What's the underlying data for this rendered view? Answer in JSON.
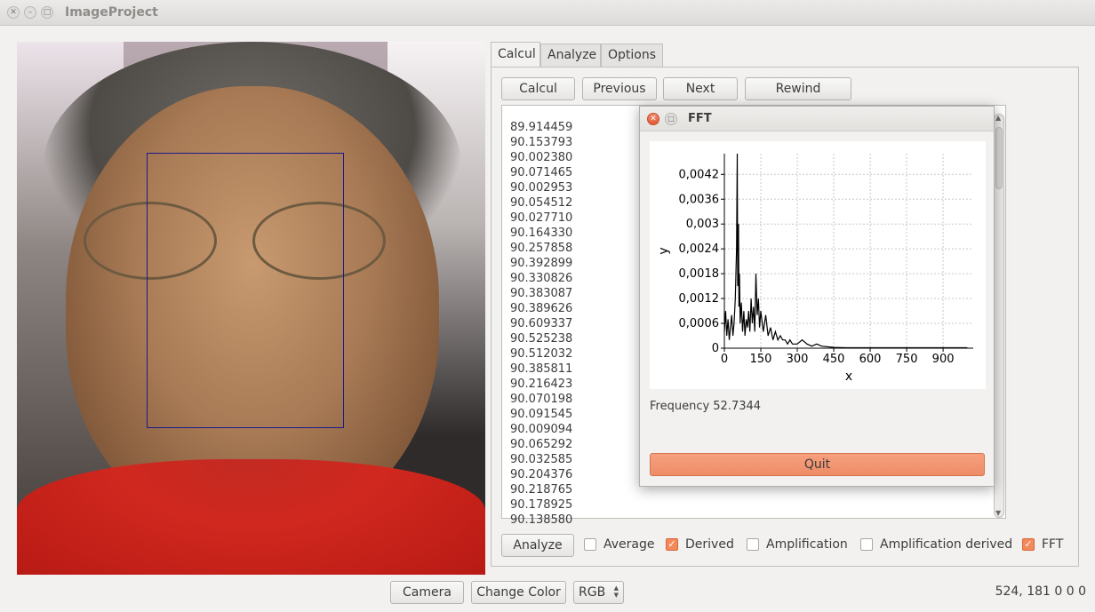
{
  "window": {
    "title": "ImageProject"
  },
  "tabs": [
    {
      "label": "Calcul",
      "active": true
    },
    {
      "label": "Analyze",
      "active": false
    },
    {
      "label": "Options",
      "active": false
    }
  ],
  "toolbar": {
    "calcul": "Calcul",
    "previous": "Previous",
    "next": "Next",
    "rewind": "Rewind"
  },
  "values": [
    "89.914459",
    "90.153793",
    "90.002380",
    "90.071465",
    "90.002953",
    "90.054512",
    "90.027710",
    "90.164330",
    "90.257858",
    "90.392899",
    "90.330826",
    "90.383087",
    "90.389626",
    "90.609337",
    "90.525238",
    "90.512032",
    "90.385811",
    "90.216423",
    "90.070198",
    "90.091545",
    "90.009094",
    "90.065292",
    "90.032585",
    "90.204376",
    "90.218765",
    "90.178925",
    "90.138580"
  ],
  "analysis": {
    "analyze_button": "Analyze",
    "checks": [
      {
        "label": "Average",
        "checked": false
      },
      {
        "label": "Derived",
        "checked": true
      },
      {
        "label": "Amplification",
        "checked": false
      },
      {
        "label": "Amplification derived",
        "checked": false
      },
      {
        "label": "FFT",
        "checked": true
      }
    ]
  },
  "bottom": {
    "camera": "Camera",
    "change_color": "Change Color",
    "color_mode": "RGB",
    "status": "524, 181 0 0 0"
  },
  "dialog": {
    "title": "FFT",
    "frequency_text": "Frequency 52.7344",
    "quit": "Quit"
  },
  "chart_data": {
    "type": "line",
    "xlabel": "x",
    "ylabel": "y",
    "xlim": [
      0,
      1024
    ],
    "ylim": [
      0,
      0.0047
    ],
    "x_ticks": [
      "0",
      "150",
      "300",
      "450",
      "600",
      "750",
      "900"
    ],
    "y_ticks": [
      "0",
      "0,0006",
      "0,0012",
      "0,0018",
      "0,0024",
      "0,003",
      "0,0036",
      "0,0042"
    ],
    "grid": true,
    "series": [
      {
        "x": [
          0,
          5,
          10,
          15,
          20,
          25,
          30,
          35,
          40,
          45,
          50,
          53,
          55,
          58,
          60,
          62,
          65,
          70,
          75,
          80,
          85,
          90,
          95,
          100,
          105,
          110,
          115,
          120,
          125,
          130,
          135,
          140,
          145,
          150,
          160,
          170,
          180,
          190,
          200,
          210,
          220,
          230,
          240,
          250,
          260,
          270,
          280,
          290,
          300,
          320,
          340,
          360,
          380,
          400,
          450,
          500,
          600,
          700,
          800,
          900,
          1000
        ],
        "y": [
          0.0004,
          0.0009,
          0.0003,
          0.0007,
          0.0002,
          0.0005,
          0.0008,
          0.0003,
          0.0006,
          0.0012,
          0.0024,
          0.0047,
          0.0015,
          0.003,
          0.001,
          0.0018,
          0.0006,
          0.0011,
          0.0004,
          0.0009,
          0.0003,
          0.0007,
          0.0005,
          0.0009,
          0.0004,
          0.0012,
          0.0006,
          0.001,
          0.0004,
          0.0018,
          0.0008,
          0.0012,
          0.0005,
          0.0009,
          0.0004,
          0.0008,
          0.0003,
          0.0005,
          0.0002,
          0.0004,
          0.0002,
          0.0003,
          0.0002,
          0.0002,
          0.0001,
          0.0002,
          0.0001,
          0.0001,
          0.0001,
          0.0002,
          0.0001,
          5e-05,
          0.0001,
          5e-05,
          2e-05,
          1e-05,
          1e-05,
          1e-05,
          1e-05,
          1e-05,
          1e-05
        ]
      }
    ]
  }
}
